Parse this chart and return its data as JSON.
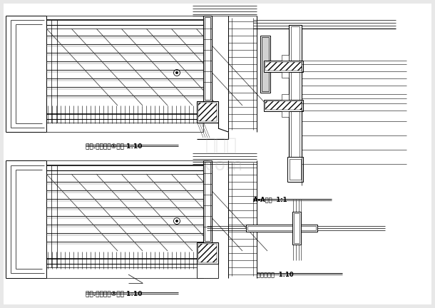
{
  "bg_color": "#f0f0f0",
  "line_color": "#000000",
  "figsize": [
    6.1,
    4.32
  ],
  "dpi": 100,
  "labels": {
    "label1": "露台.阳台栏杆①详图 1:10",
    "label2": "露台.阳台栏杆②详图 1:10",
    "label3": "A-A剩面  1:1",
    "label4": "转角处平面  1:10"
  }
}
